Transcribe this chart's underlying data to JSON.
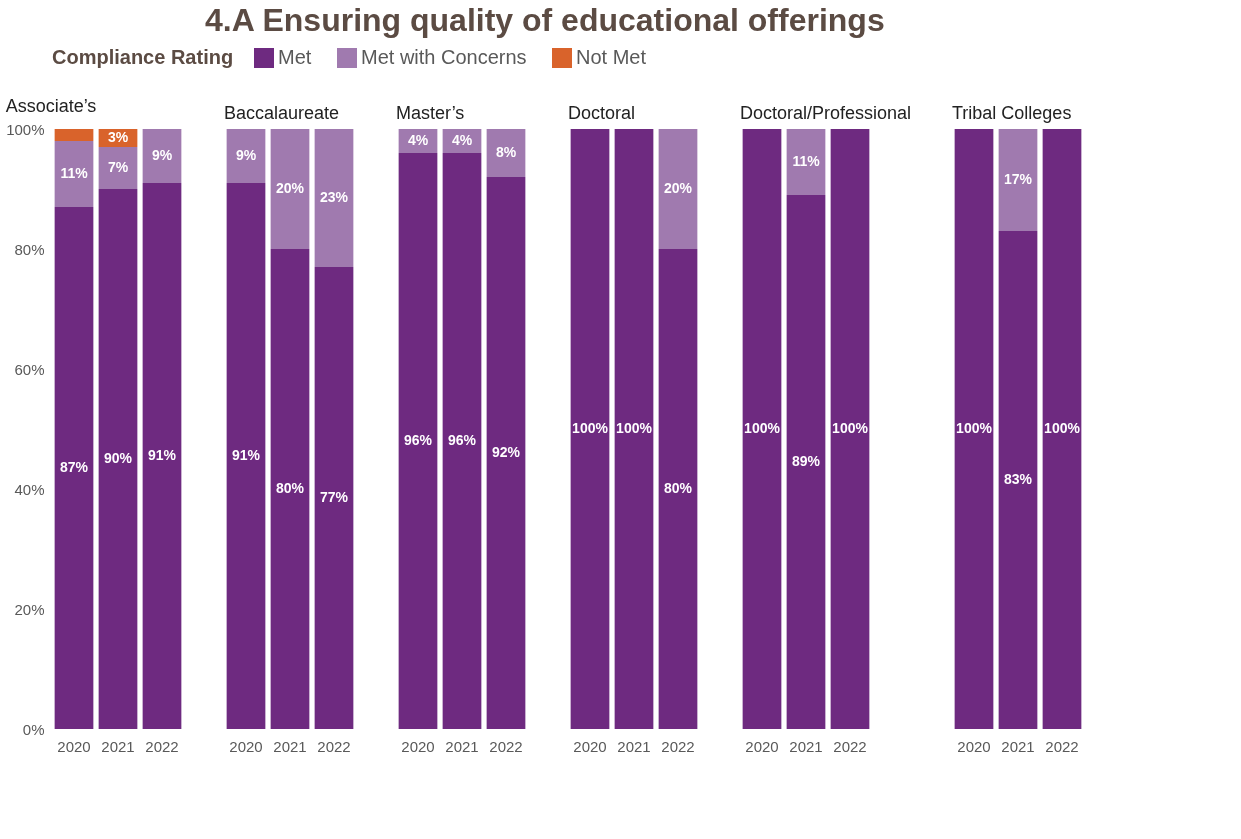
{
  "chart_data": [
    {
      "type": "bar",
      "stacked": true,
      "title": "Associate’s",
      "annotations": [
        "4.A Ensuring quality of educational offerings"
      ],
      "legend_title": "Compliance Rating",
      "legend": "top",
      "categories": [
        "2020",
        "2021",
        "2022"
      ],
      "ylim": [
        0,
        100
      ],
      "yticks": [
        {
          "value": 0,
          "label": "0%"
        },
        {
          "value": 20,
          "label": "20%"
        },
        {
          "value": 40,
          "label": "40%"
        },
        {
          "value": 60,
          "label": "60%"
        },
        {
          "value": 80,
          "label": "80%"
        },
        {
          "value": 100,
          "label": "100%"
        }
      ],
      "series": [
        {
          "name": "Met",
          "color": "#6e2a80",
          "values": [
            87,
            90,
            91
          ],
          "value_labels": [
            "87%",
            "90%",
            "91%"
          ]
        },
        {
          "name": "Met with Concerns",
          "color": "#a07aaf",
          "values": [
            11,
            7,
            9
          ],
          "value_labels": [
            "11%",
            "7%",
            "9%"
          ]
        },
        {
          "name": "Not Met",
          "color": "#d9632b",
          "values": [
            2,
            3,
            null
          ],
          "value_labels": [
            null,
            "3%",
            null
          ]
        }
      ]
    },
    {
      "type": "bar",
      "stacked": true,
      "title": "Baccalaureate",
      "tick_labels": "x",
      "categories": [
        "2020",
        "2021",
        "2022"
      ],
      "ylim": [
        0,
        100
      ],
      "series": [
        {
          "name": "Met",
          "color": "#6e2a80",
          "values": [
            91,
            80,
            77
          ],
          "value_labels": [
            "91%",
            "80%",
            "77%"
          ]
        },
        {
          "name": "Met with Concerns",
          "color": "#a07aaf",
          "values": [
            9,
            20,
            23
          ],
          "value_labels": [
            "9%",
            "20%",
            "23%"
          ]
        }
      ]
    },
    {
      "type": "bar",
      "stacked": true,
      "title": "Master’s",
      "tick_labels": "x",
      "categories": [
        "2020",
        "2021",
        "2022"
      ],
      "ylim": [
        0,
        100
      ],
      "series": [
        {
          "name": "Met",
          "color": "#6e2a80",
          "values": [
            96,
            96,
            92
          ],
          "value_labels": [
            "96%",
            "96%",
            "92%"
          ]
        },
        {
          "name": "Met with Concerns",
          "color": "#a07aaf",
          "values": [
            4,
            4,
            8
          ],
          "value_labels": [
            "4%",
            "4%",
            "8%"
          ]
        }
      ]
    },
    {
      "type": "bar",
      "stacked": true,
      "title": "Doctoral",
      "tick_labels": "x",
      "categories": [
        "2020",
        "2021",
        "2022"
      ],
      "ylim": [
        0,
        100
      ],
      "series": [
        {
          "name": "Met",
          "color": "#6e2a80",
          "values": [
            100,
            100,
            80
          ],
          "value_labels": [
            "100%",
            "100%",
            "80%"
          ]
        },
        {
          "name": "Met with Concerns",
          "color": "#a07aaf",
          "values": [
            null,
            null,
            20
          ],
          "value_labels": [
            null,
            null,
            "20%"
          ]
        }
      ]
    },
    {
      "type": "bar",
      "stacked": true,
      "title": "Doctoral/Professional",
      "tick_labels": "x",
      "categories": [
        "2020",
        "2021",
        "2022"
      ],
      "ylim": [
        0,
        100
      ],
      "series": [
        {
          "name": "Met",
          "color": "#6e2a80",
          "values": [
            100,
            89,
            100
          ],
          "value_labels": [
            "100%",
            "89%",
            "100%"
          ]
        },
        {
          "name": "Met with Concerns",
          "color": "#a07aaf",
          "values": [
            null,
            11,
            null
          ],
          "value_labels": [
            null,
            "11%",
            null
          ]
        }
      ]
    },
    {
      "type": "bar",
      "stacked": true,
      "title": "Tribal Colleges",
      "tick_labels": "x",
      "categories": [
        "2020",
        "2021",
        "2022"
      ],
      "ylim": [
        0,
        100
      ],
      "series": [
        {
          "name": "Met",
          "color": "#6e2a80",
          "values": [
            100,
            83,
            100
          ],
          "value_labels": [
            "100%",
            "83%",
            "100%"
          ]
        },
        {
          "name": "Met with Concerns",
          "color": "#a07aaf",
          "values": [
            null,
            17,
            null
          ],
          "value_labels": [
            null,
            "17%",
            null
          ]
        }
      ]
    }
  ]
}
